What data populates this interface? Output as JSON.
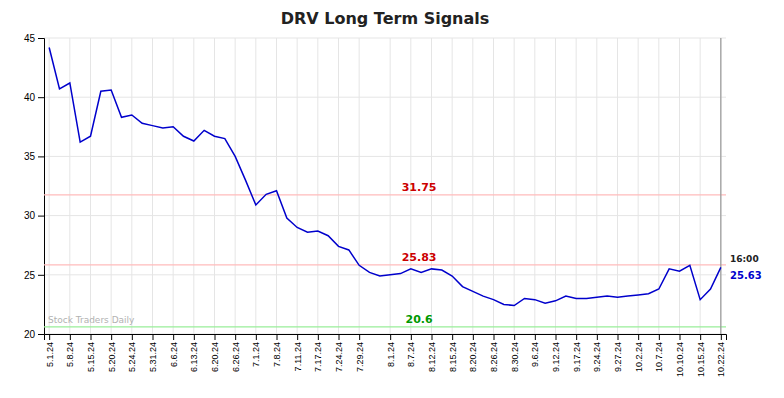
{
  "chart_data": {
    "type": "line",
    "title": "DRV Long Term Signals",
    "categories": [
      "5.1.24",
      null,
      "5.8.24",
      null,
      "5.15.24",
      null,
      "5.20.24",
      null,
      "5.24.24",
      null,
      "5.31.24",
      null,
      "6.6.24",
      null,
      "6.13.24",
      null,
      "6.20.24",
      null,
      "6.26.24",
      null,
      "7.1.24",
      null,
      "7.8.24",
      null,
      "7.11.24",
      null,
      "7.17.24",
      null,
      "7.24.24",
      null,
      "7.29.24",
      null,
      null,
      "8.1.24",
      null,
      "8.7.24",
      null,
      "8.12.24",
      null,
      "8.15.24",
      null,
      "8.20.24",
      null,
      "8.26.24",
      null,
      "8.30.24",
      null,
      "9.6.24",
      null,
      "9.12.24",
      null,
      "9.17.24",
      null,
      "9.24.24",
      null,
      "9.27.24",
      null,
      "10.2.24",
      null,
      "10.7.24",
      null,
      "10.10.24",
      null,
      "10.15.24",
      null,
      "10.22.24"
    ],
    "values": [
      44.2,
      40.7,
      41.2,
      36.2,
      36.7,
      40.5,
      40.6,
      38.3,
      38.5,
      37.8,
      37.6,
      37.4,
      37.5,
      36.7,
      36.3,
      37.2,
      36.7,
      36.5,
      35.0,
      33.0,
      30.9,
      31.8,
      32.1,
      29.8,
      29.0,
      28.6,
      28.7,
      28.3,
      27.4,
      27.1,
      25.8,
      25.2,
      24.9,
      25.0,
      25.1,
      25.5,
      25.2,
      25.5,
      25.4,
      24.9,
      24.0,
      23.6,
      23.2,
      22.9,
      22.5,
      22.4,
      23.0,
      22.9,
      22.6,
      22.8,
      23.2,
      23.0,
      23.0,
      23.1,
      23.2,
      23.1,
      23.2,
      23.3,
      23.4,
      23.8,
      25.5,
      25.3,
      25.8,
      22.9,
      23.8,
      25.63
    ],
    "color": "#0000cc",
    "ylim": [
      20,
      45
    ],
    "yticks": [
      20,
      25,
      30,
      35,
      40,
      45
    ],
    "grid": true,
    "reference_lines": [
      {
        "y": 31.75,
        "label": "31.75",
        "color": "#ffbbbb",
        "label_color": "#cc0000"
      },
      {
        "y": 25.83,
        "label": "25.83",
        "color": "#ffbbbb",
        "label_color": "#cc0000"
      },
      {
        "y": 20.6,
        "label": "20.6",
        "color": "#99ee99",
        "label_color": "#009900"
      }
    ],
    "vline_color": "#999999",
    "annotations": [
      {
        "text": "Stock Traders Daily",
        "color": "#aaaaaa"
      },
      {
        "text": "16:00",
        "color": "#222222"
      },
      {
        "text": "25.63",
        "color": "#0000cc"
      }
    ]
  }
}
